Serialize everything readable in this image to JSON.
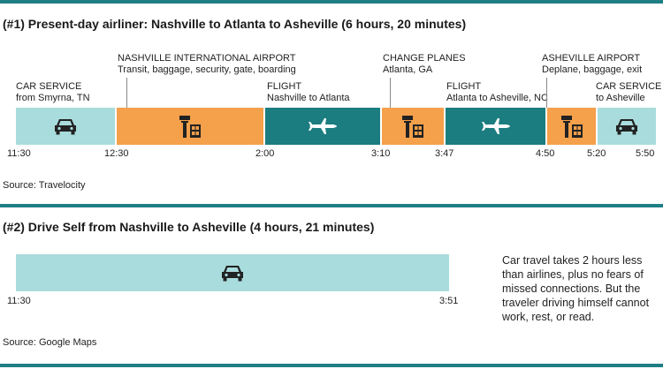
{
  "colors": {
    "car": "#a9dcdc",
    "airport": "#f5a04b",
    "flight": "#1b7d80",
    "rule": "#1f7f85",
    "icon_dark": "#222222",
    "icon_light": "#ffffff"
  },
  "section1": {
    "title": "(#1) Present-day airliner: Nashville to Atlanta to Asheville (6 hours, 20 minutes)",
    "labels": [
      {
        "l1": "CAR SERVICE",
        "l2": "from Smyrna, TN"
      },
      {
        "l1": "NASHVILLE INTERNATIONAL AIRPORT",
        "l2": "Transit, baggage, security, gate, boarding"
      },
      {
        "l1": "FLIGHT",
        "l2": "Nashville to Atlanta"
      },
      {
        "l1": "CHANGE PLANES",
        "l2": "Atlanta, GA"
      },
      {
        "l1": "FLIGHT",
        "l2": "Atlanta to Asheville, NC"
      },
      {
        "l1": "ASHEVILLE AIRPORT",
        "l2": "Deplane, baggage, exit"
      },
      {
        "l1": "CAR SERVICE",
        "l2": "to Asheville"
      }
    ],
    "segments": [
      {
        "kind": "car",
        "icon": "car-icon"
      },
      {
        "kind": "airport",
        "icon": "airport-icon"
      },
      {
        "kind": "flight",
        "icon": "plane-icon"
      },
      {
        "kind": "airport",
        "icon": "airport-icon"
      },
      {
        "kind": "flight",
        "icon": "plane-icon"
      },
      {
        "kind": "airport",
        "icon": "airport-icon"
      },
      {
        "kind": "car",
        "icon": "car-icon"
      }
    ],
    "times": [
      "11:30",
      "12:30",
      "2:00",
      "3:10",
      "3:47",
      "4:50",
      "5:20",
      "5:50"
    ],
    "source": "Source: Travelocity"
  },
  "section2": {
    "title": "(#2) Drive Self from Nashville to Asheville (4 hours, 21 minutes)",
    "segment": {
      "kind": "car",
      "icon": "car-icon"
    },
    "times": [
      "11:30",
      "3:51"
    ],
    "note": "Car travel takes 2 hours less than airlines, plus no fears of missed connections. But the traveler driving himself cannot work, rest, or read.",
    "source": "Source: Google Maps"
  }
}
